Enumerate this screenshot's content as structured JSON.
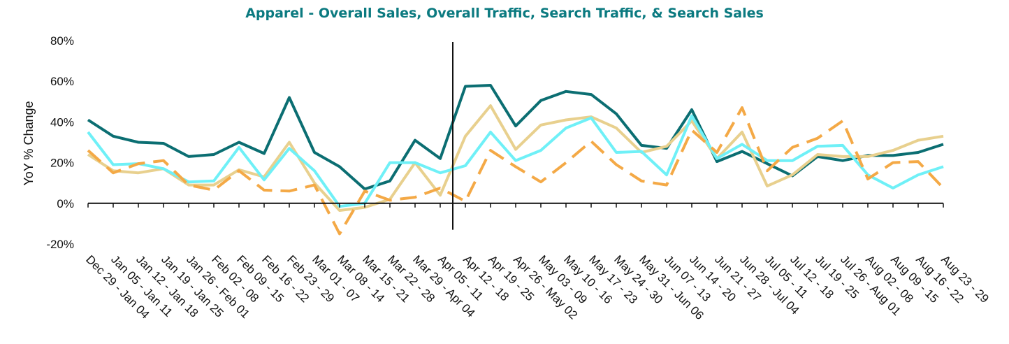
{
  "chart_data": {
    "type": "line",
    "title": "Apparel - Overall Sales, Overall Traffic, Search Traffic, & Search Sales",
    "ylabel": "YoY % Change",
    "xlabel": "",
    "ylim": [
      -20,
      80
    ],
    "yticks": [
      -20,
      0,
      20,
      40,
      60,
      80
    ],
    "ytick_labels": [
      "-20%",
      "0%",
      "20%",
      "40%",
      "60%",
      "80%"
    ],
    "legend": "none",
    "grid": false,
    "reference_line_after_category": "Apr 05 - 11",
    "categories": [
      "Dec 29 - Jan 04",
      "Jan 05 - Jan 11",
      "Jan 12 - Jan 18",
      "Jan 19 - Jan 25",
      "Jan 26 - Feb 01",
      "Feb 02 - 08",
      "Feb 09 - 15",
      "Feb 16 - 22",
      "Feb 23 - 29",
      "Mar 01 - 07",
      "Mar 08 - 14",
      "Mar 15 - 21",
      "Mar 22 - 28",
      "Mar 29 - Apr 04",
      "Apr 05 - 11",
      "Apr 12 - 18",
      "Apr 19 - 25",
      "Apr 26 - May 02",
      "May 03 - 09",
      "May 10 - 16",
      "May 17 - 23",
      "May 24 - 30",
      "May 31 - Jun 06",
      "Jun 07 - 13",
      "Jun 14 - 20",
      "Jun 21 - 27",
      "Jun 28 - Jul 04",
      "Jul 05 - 11",
      "Jul 12 - 18",
      "Jul 19 - 25",
      "Jul 26 - Aug 01",
      "Aug 02 - 08",
      "Aug 09 - 15",
      "Aug 16 - 22",
      "Aug 23 - 29"
    ],
    "series": [
      {
        "color": "#0b6e72",
        "dash": "solid",
        "values": [
          41,
          33,
          30,
          29.5,
          23,
          24,
          30,
          24.5,
          52,
          25,
          18,
          7,
          11,
          31,
          22,
          57.5,
          58,
          38,
          50.5,
          55,
          53.5,
          44,
          28.5,
          27,
          46,
          20.5,
          25.5,
          19.5,
          13.5,
          23,
          21,
          23.5,
          23.5,
          25,
          29
        ]
      },
      {
        "color": "#e8d08e",
        "dash": "solid",
        "values": [
          24,
          16,
          15,
          17,
          9,
          9,
          16.5,
          13,
          30,
          10,
          -3.5,
          -2,
          2,
          20,
          4,
          33,
          48,
          26.5,
          38.5,
          41,
          42.5,
          37,
          25,
          28,
          40.5,
          22,
          35,
          8.5,
          14,
          24,
          23,
          23,
          26,
          31,
          33
        ]
      },
      {
        "color": "#6ff0f7",
        "dash": "solid",
        "values": [
          35,
          19,
          19.5,
          17,
          10.5,
          11,
          27.5,
          11.5,
          27,
          16,
          -1.5,
          0,
          20,
          20,
          15,
          18.5,
          35,
          21,
          26,
          37,
          42,
          25,
          25.5,
          14,
          43,
          22,
          29,
          21,
          21,
          28,
          28.5,
          14,
          7.5,
          14,
          18
        ]
      },
      {
        "color": "#f4a946",
        "dash": "dashed",
        "values": [
          26,
          15,
          19.5,
          21,
          9,
          6.5,
          16,
          6.5,
          6,
          9,
          -15,
          6,
          1.5,
          3,
          7.5,
          1,
          26,
          18,
          10.5,
          20,
          30.5,
          19,
          11,
          9,
          36,
          25,
          47,
          16,
          27.5,
          32,
          40.5,
          12,
          20,
          20.5,
          7.5
        ]
      }
    ]
  }
}
